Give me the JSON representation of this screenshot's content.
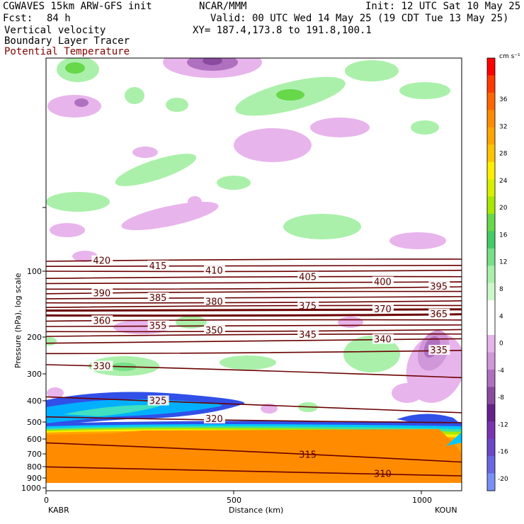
{
  "header": {
    "model": "CGWAVES 15km ARW-GFS init",
    "fcst_label": "Fcst:",
    "fcst_value": "84 h",
    "agency": "NCAR/MMM",
    "init": "Init: 12 UTC Sat 10 May 25",
    "valid": "Valid: 00 UTC Wed 14 May 25 (19 CDT Tue 13 May 25)",
    "xy": "XY= 187.4,173.8 to 191.8,100.1",
    "fields": [
      "Vertical velocity",
      "Boundary Layer Tracer",
      "Potential Temperature"
    ]
  },
  "colors": {
    "theta_contour": "#6b0000",
    "text_brown": "#800000"
  },
  "chart_data": {
    "type": "heatmap",
    "title": "CGWAVES 15km ARW-GFS init",
    "xlabel": "Distance (km)",
    "ylabel": "Pressure (hPa), log scale",
    "x_ticks": [
      0,
      500,
      1000
    ],
    "x_end_labels": {
      "left": "KABR",
      "right": "KOUN"
    },
    "xlim": [
      0,
      1110
    ],
    "y_ticks": [
      100,
      200,
      300,
      400,
      500,
      600,
      700,
      800,
      900,
      1000
    ],
    "y_scale": "log",
    "ylim": [
      1000,
      10
    ],
    "colorbar": {
      "units": "cm s⁻¹",
      "labels": [
        36,
        32,
        28,
        24,
        20,
        16,
        12,
        8,
        4,
        0,
        -4,
        -8,
        -12,
        -16,
        -20
      ],
      "colors": [
        "#ff0000",
        "#ff3a00",
        "#ff6600",
        "#ff8c00",
        "#ffa500",
        "#ffc400",
        "#ffee00",
        "#d8f000",
        "#a8e800",
        "#66d84a",
        "#44cc66",
        "#77e088",
        "#aaf0aa",
        "#ccf8cc",
        "#ffffff",
        "#ffffff",
        "#e8b4ec",
        "#d098d8",
        "#b070c0",
        "#8a4aa0",
        "#66228a",
        "#7a34b0",
        "#6a48c8",
        "#6a68e0",
        "#7890f4"
      ]
    },
    "theta_contours": [
      {
        "label": 420,
        "p": [
          90,
          88
        ]
      },
      {
        "label": 415,
        "p": [
          95,
          94
        ]
      },
      {
        "label": 410,
        "p": [
          100,
          99
        ]
      },
      {
        "label": 405,
        "p": [
          108,
          106
        ]
      },
      {
        "label": 400,
        "p": [
          114,
          112
        ]
      },
      {
        "label": 395,
        "p": [
          121,
          118
        ]
      },
      {
        "label": 390,
        "p": [
          127,
          124
        ]
      },
      {
        "label": 385,
        "p": [
          134,
          131
        ]
      },
      {
        "label": 380,
        "p": [
          140,
          137
        ]
      },
      {
        "label": 375,
        "p": [
          147,
          144
        ]
      },
      {
        "label": 370,
        "p": [
          152,
          150
        ]
      },
      {
        "label": 365,
        "p": [
          160,
          158
        ]
      },
      {
        "label": 360,
        "p": [
          170,
          168
        ]
      },
      {
        "label": 355,
        "p": [
          180,
          177
        ]
      },
      {
        "label": 350,
        "p": [
          190,
          186
        ]
      },
      {
        "label": 345,
        "p": [
          200,
          195
        ]
      },
      {
        "label": 340,
        "p": [
          215,
          205
        ]
      },
      {
        "label": 335,
        "p": [
          240,
          232
        ]
      },
      {
        "label": 330,
        "p": [
          270,
          310
        ]
      },
      {
        "label": 325,
        "p": [
          380,
          450
        ]
      },
      {
        "label": 320,
        "p": [
          470,
          500
        ]
      },
      {
        "label": 315,
        "p": [
          620,
          760
        ]
      },
      {
        "label": 310,
        "p": [
          800,
          880
        ]
      }
    ]
  }
}
